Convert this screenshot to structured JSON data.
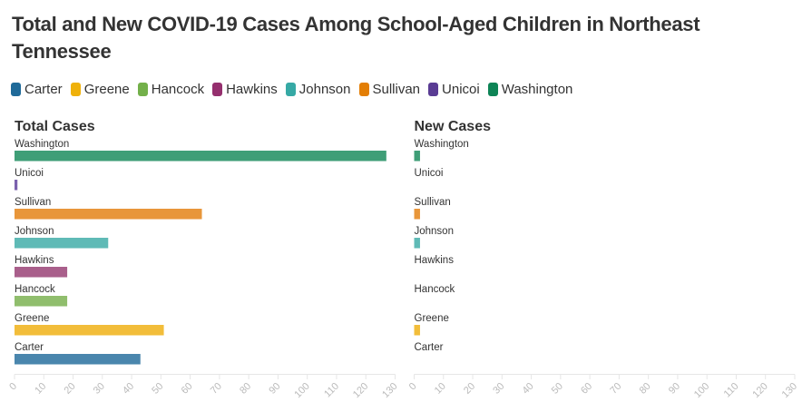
{
  "title": "Total and New COVID-19 Cases Among School-Aged Children in Northeast Tennessee",
  "legend": [
    {
      "name": "Carter",
      "color": "#1f6a99"
    },
    {
      "name": "Greene",
      "color": "#efb10a"
    },
    {
      "name": "Hancock",
      "color": "#73b04a"
    },
    {
      "name": "Hawkins",
      "color": "#952f6e"
    },
    {
      "name": "Johnson",
      "color": "#36a9a5"
    },
    {
      "name": "Sullivan",
      "color": "#e37e05"
    },
    {
      "name": "Unicoi",
      "color": "#5a3c94"
    },
    {
      "name": "Washington",
      "color": "#0e8456"
    }
  ],
  "chart_data": [
    {
      "type": "bar",
      "orientation": "horizontal",
      "title": "Total Cases",
      "categories": [
        "Washington",
        "Unicoi",
        "Sullivan",
        "Johnson",
        "Hawkins",
        "Hancock",
        "Greene",
        "Carter"
      ],
      "values": [
        127,
        1,
        64,
        32,
        18,
        18,
        51,
        43
      ],
      "xlim": [
        0,
        130
      ],
      "ticks": [
        "0",
        "10",
        "20",
        "30",
        "40",
        "50",
        "60",
        "70",
        "80",
        "90",
        "100",
        "110",
        "120",
        "130"
      ]
    },
    {
      "type": "bar",
      "orientation": "horizontal",
      "title": "New Cases",
      "categories": [
        "Washington",
        "Unicoi",
        "Sullivan",
        "Johnson",
        "Hawkins",
        "Hancock",
        "Greene",
        "Carter"
      ],
      "values": [
        2,
        0,
        2,
        2,
        0,
        0,
        2,
        0
      ],
      "xlim": [
        0,
        130
      ],
      "ticks": [
        "0",
        "10",
        "20",
        "30",
        "40",
        "50",
        "60",
        "70",
        "80",
        "90",
        "100",
        "110",
        "120",
        "130"
      ]
    }
  ],
  "bar_colors": {
    "Carter": "#4a86ad",
    "Greene": "#f2bd3a",
    "Hancock": "#90be6d",
    "Hawkins": "#a95f8b",
    "Johnson": "#5fbab6",
    "Sullivan": "#e8963a",
    "Unicoi": "#7b61ae",
    "Washington": "#3f9e77"
  }
}
